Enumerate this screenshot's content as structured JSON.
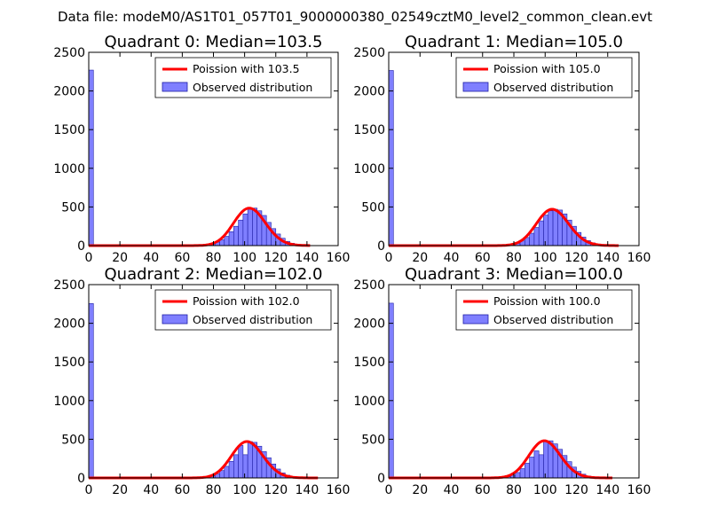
{
  "figure": {
    "suptitle": "Data file: modeM0/AS1T01_057T01_9000000380_02549cztM0_level2_common_clean.evt"
  },
  "style": {
    "bar_fill": "#7f7fff",
    "bar_edge": "#1f1fa6",
    "line_color": "#ff0000"
  },
  "chart_data": [
    {
      "type": "bar",
      "title": "Quadrant 0: Median=103.5",
      "median": 103.5,
      "xlim": [
        0,
        160
      ],
      "ylim": [
        0,
        2500
      ],
      "xticks": [
        0,
        20,
        40,
        60,
        80,
        100,
        120,
        140,
        160
      ],
      "yticks": [
        0,
        500,
        1000,
        1500,
        2000,
        2500
      ],
      "bin_width": 3,
      "bars": [
        [
          0,
          2270
        ],
        [
          72,
          3
        ],
        [
          75,
          8
        ],
        [
          78,
          20
        ],
        [
          81,
          45
        ],
        [
          84,
          75
        ],
        [
          87,
          120
        ],
        [
          90,
          180
        ],
        [
          93,
          250
        ],
        [
          96,
          330
        ],
        [
          99,
          410
        ],
        [
          102,
          470
        ],
        [
          105,
          485
        ],
        [
          108,
          450
        ],
        [
          111,
          390
        ],
        [
          114,
          300
        ],
        [
          117,
          220
        ],
        [
          120,
          150
        ],
        [
          123,
          95
        ],
        [
          126,
          55
        ],
        [
          129,
          30
        ],
        [
          132,
          15
        ],
        [
          135,
          7
        ],
        [
          138,
          3
        ]
      ],
      "legend": {
        "line": "Poission with 103.5",
        "bars": "Observed distribution"
      },
      "line_range": [
        0,
        142
      ]
    },
    {
      "type": "bar",
      "title": "Quadrant 1: Median=105.0",
      "median": 105.0,
      "xlim": [
        0,
        160
      ],
      "ylim": [
        0,
        2500
      ],
      "xticks": [
        0,
        20,
        40,
        60,
        80,
        100,
        120,
        140,
        160
      ],
      "yticks": [
        0,
        500,
        1000,
        1500,
        2000,
        2500
      ],
      "bin_width": 3,
      "bars": [
        [
          0,
          2265
        ],
        [
          75,
          5
        ],
        [
          78,
          12
        ],
        [
          81,
          30
        ],
        [
          84,
          60
        ],
        [
          87,
          105
        ],
        [
          90,
          160
        ],
        [
          93,
          235
        ],
        [
          96,
          320
        ],
        [
          99,
          395
        ],
        [
          102,
          450
        ],
        [
          105,
          470
        ],
        [
          108,
          460
        ],
        [
          111,
          410
        ],
        [
          114,
          330
        ],
        [
          117,
          250
        ],
        [
          120,
          170
        ],
        [
          123,
          110
        ],
        [
          126,
          65
        ],
        [
          129,
          35
        ],
        [
          132,
          18
        ],
        [
          135,
          9
        ],
        [
          138,
          4
        ]
      ],
      "legend": {
        "line": "Poission with 105.0",
        "bars": "Observed distribution"
      },
      "line_range": [
        0,
        147
      ]
    },
    {
      "type": "bar",
      "title": "Quadrant 2: Median=102.0",
      "median": 102.0,
      "xlim": [
        0,
        160
      ],
      "ylim": [
        0,
        2500
      ],
      "xticks": [
        0,
        20,
        40,
        60,
        80,
        100,
        120,
        140,
        160
      ],
      "yticks": [
        0,
        500,
        1000,
        1500,
        2000,
        2500
      ],
      "bin_width": 3,
      "bars": [
        [
          0,
          2255
        ],
        [
          72,
          4
        ],
        [
          75,
          10
        ],
        [
          78,
          25
        ],
        [
          81,
          55
        ],
        [
          84,
          95
        ],
        [
          87,
          150
        ],
        [
          90,
          215
        ],
        [
          93,
          300
        ],
        [
          96,
          420
        ],
        [
          99,
          300
        ],
        [
          102,
          470
        ],
        [
          105,
          460
        ],
        [
          108,
          410
        ],
        [
          111,
          340
        ],
        [
          114,
          260
        ],
        [
          117,
          180
        ],
        [
          120,
          115
        ],
        [
          123,
          65
        ],
        [
          126,
          35
        ],
        [
          129,
          15
        ],
        [
          132,
          7
        ],
        [
          135,
          3
        ]
      ],
      "legend": {
        "line": "Poission with 102.0",
        "bars": "Observed distribution"
      },
      "line_range": [
        0,
        147
      ]
    },
    {
      "type": "bar",
      "title": "Quadrant 3: Median=100.0",
      "median": 100.0,
      "xlim": [
        0,
        160
      ],
      "ylim": [
        0,
        2500
      ],
      "xticks": [
        0,
        20,
        40,
        60,
        80,
        100,
        120,
        140,
        160
      ],
      "yticks": [
        0,
        500,
        1000,
        1500,
        2000,
        2500
      ],
      "bin_width": 3,
      "bars": [
        [
          0,
          2260
        ],
        [
          72,
          6
        ],
        [
          75,
          15
        ],
        [
          78,
          35
        ],
        [
          81,
          70
        ],
        [
          84,
          120
        ],
        [
          87,
          190
        ],
        [
          90,
          270
        ],
        [
          93,
          350
        ],
        [
          96,
          300
        ],
        [
          99,
          475
        ],
        [
          102,
          480
        ],
        [
          105,
          440
        ],
        [
          108,
          370
        ],
        [
          111,
          290
        ],
        [
          114,
          210
        ],
        [
          117,
          140
        ],
        [
          120,
          85
        ],
        [
          123,
          48
        ],
        [
          126,
          25
        ],
        [
          129,
          12
        ],
        [
          132,
          5
        ]
      ],
      "legend": {
        "line": "Poission with 100.0",
        "bars": "Observed distribution"
      },
      "line_range": [
        0,
        143
      ]
    }
  ]
}
